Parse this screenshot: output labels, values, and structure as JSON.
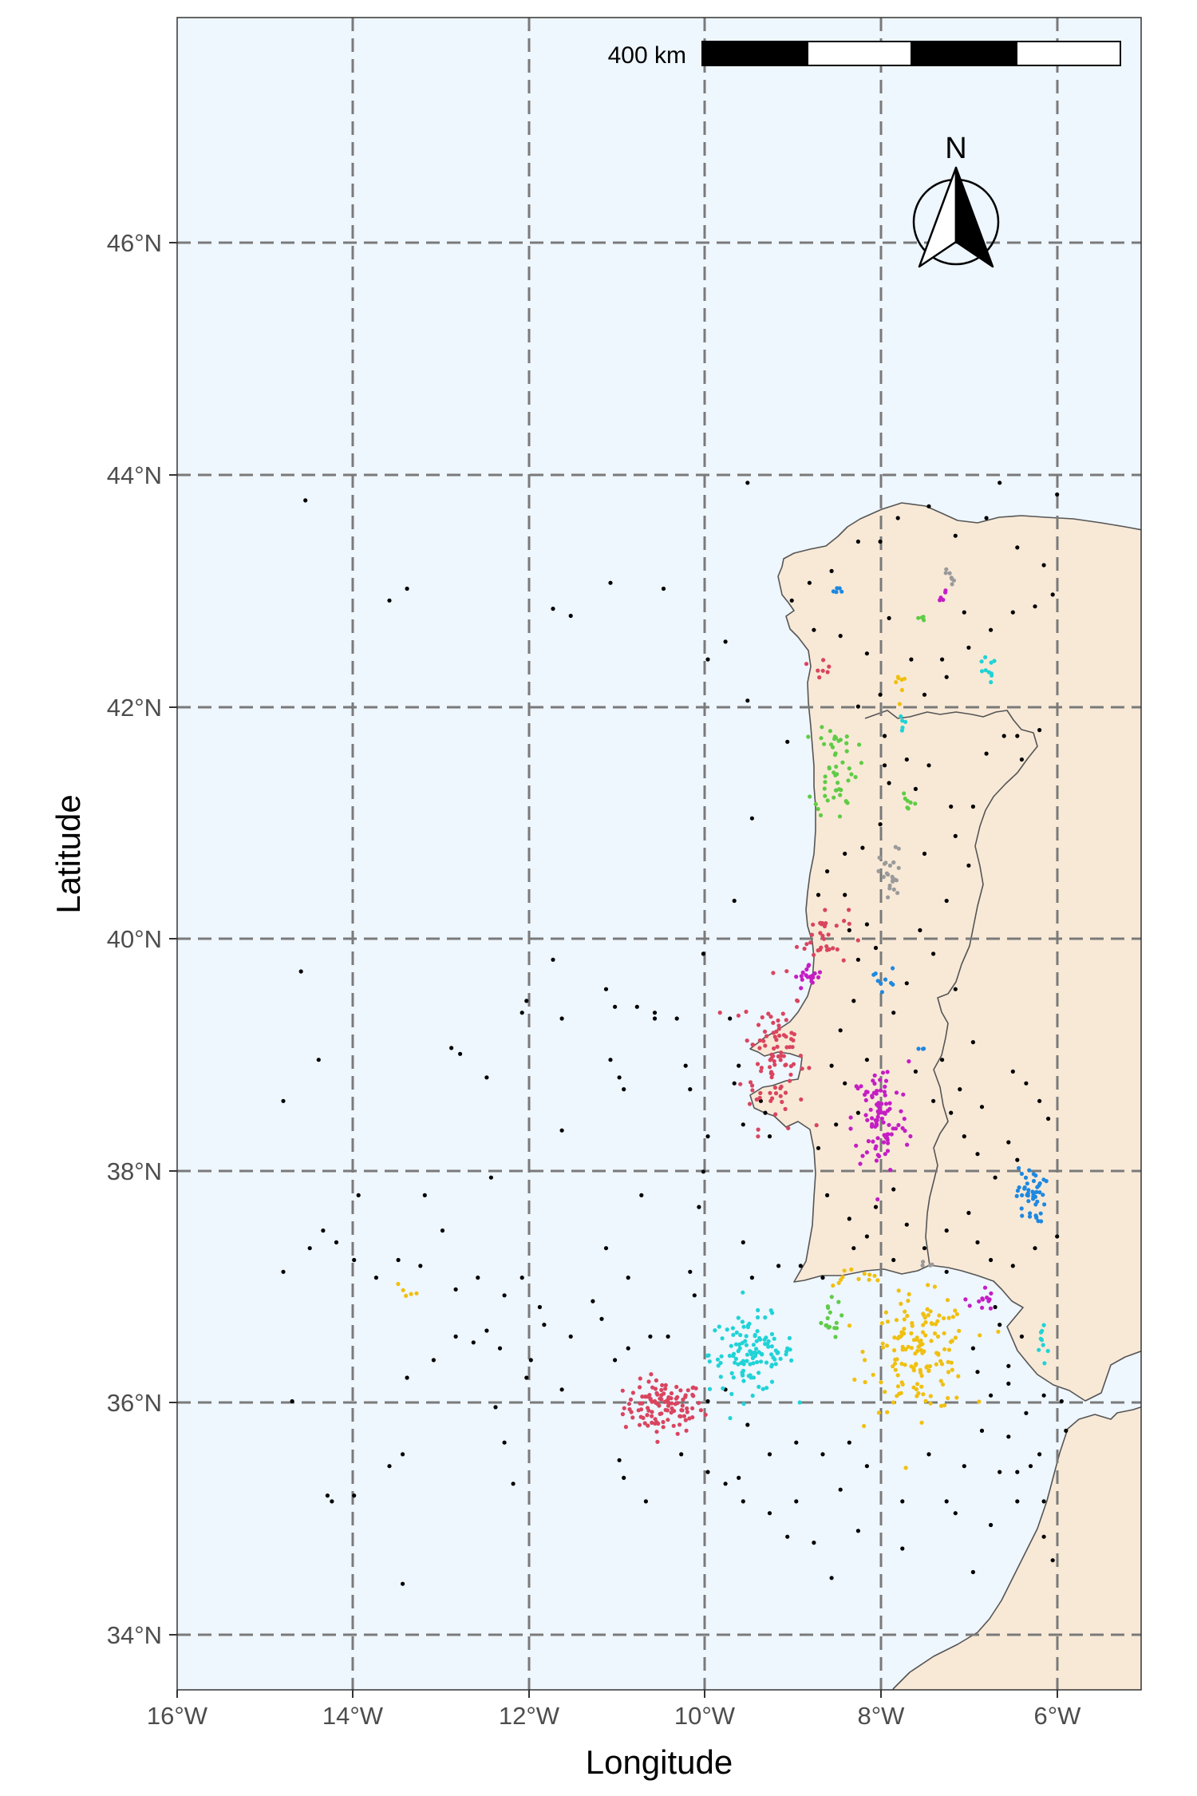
{
  "chart_data": {
    "type": "scatter",
    "xlabel": "Longitude",
    "ylabel": "Latitude",
    "xlim": [
      -16,
      -5.1
    ],
    "ylim": [
      33.6,
      47.8
    ],
    "x_ticks": [
      -16,
      -14,
      -12,
      -10,
      -8,
      -6
    ],
    "x_tick_labels": [
      "16°W",
      "14°W",
      "12°W",
      "10°W",
      "8°W",
      "6°W"
    ],
    "y_ticks": [
      34,
      36,
      38,
      40,
      42,
      44,
      46
    ],
    "y_tick_labels": [
      "34°N",
      "36°N",
      "38°N",
      "40°N",
      "42°N",
      "44°N",
      "46°N"
    ],
    "grid": true,
    "scale_bar": {
      "label": "400 km",
      "segments": 4,
      "position": "top-right"
    },
    "north_arrow": {
      "label": "N",
      "position": "top-right"
    },
    "colors": {
      "ocean": "#eef6fe",
      "land": "#f8e9d7",
      "border": "#555555",
      "unclustered": "#000000",
      "red": "#d9455f",
      "cyan": "#20d3d6",
      "yellow": "#f0c010",
      "magenta": "#c41ec4",
      "green": "#5fcc46",
      "blue": "#1e88e0",
      "gray": "#9a9a9a"
    },
    "series": [
      {
        "color_key": "red",
        "clusters": [
          {
            "lon": -10.5,
            "lat": 36.0,
            "n": 115,
            "sx": 0.28,
            "sy": 0.14
          },
          {
            "lon": -9.25,
            "lat": 39.0,
            "n": 95,
            "sx": 0.22,
            "sy": 0.38
          },
          {
            "lon": -8.7,
            "lat": 40.0,
            "n": 32,
            "sx": 0.18,
            "sy": 0.16
          },
          {
            "lon": -8.7,
            "lat": 42.3,
            "n": 7,
            "sx": 0.08,
            "sy": 0.06
          }
        ]
      },
      {
        "color_key": "cyan",
        "clusters": [
          {
            "lon": -9.5,
            "lat": 36.45,
            "n": 120,
            "sx": 0.3,
            "sy": 0.2
          },
          {
            "lon": -6.2,
            "lat": 36.55,
            "n": 9,
            "sx": 0.06,
            "sy": 0.15
          },
          {
            "lon": -6.85,
            "lat": 42.25,
            "n": 10,
            "sx": 0.07,
            "sy": 0.07
          },
          {
            "lon": -7.8,
            "lat": 41.8,
            "n": 5,
            "sx": 0.05,
            "sy": 0.08
          }
        ]
      },
      {
        "color_key": "yellow",
        "clusters": [
          {
            "lon": -7.6,
            "lat": 36.45,
            "n": 150,
            "sx": 0.35,
            "sy": 0.3
          },
          {
            "lon": -8.35,
            "lat": 37.1,
            "n": 12,
            "sx": 0.25,
            "sy": 0.05
          },
          {
            "lon": -13.4,
            "lat": 37.0,
            "n": 5,
            "sx": 0.08,
            "sy": 0.04
          },
          {
            "lon": -7.85,
            "lat": 42.15,
            "n": 7,
            "sx": 0.04,
            "sy": 0.1
          }
        ]
      },
      {
        "color_key": "magenta",
        "clusters": [
          {
            "lon": -8.05,
            "lat": 38.45,
            "n": 95,
            "sx": 0.2,
            "sy": 0.3
          },
          {
            "lon": -8.85,
            "lat": 39.65,
            "n": 20,
            "sx": 0.1,
            "sy": 0.07
          },
          {
            "lon": -6.9,
            "lat": 36.9,
            "n": 12,
            "sx": 0.08,
            "sy": 0.08
          },
          {
            "lon": -7.35,
            "lat": 42.9,
            "n": 5,
            "sx": 0.05,
            "sy": 0.05
          }
        ]
      },
      {
        "color_key": "green",
        "clusters": [
          {
            "lon": -8.55,
            "lat": 41.45,
            "n": 50,
            "sx": 0.15,
            "sy": 0.28
          },
          {
            "lon": -8.65,
            "lat": 36.75,
            "n": 16,
            "sx": 0.1,
            "sy": 0.1
          },
          {
            "lon": -7.75,
            "lat": 41.1,
            "n": 7,
            "sx": 0.05,
            "sy": 0.08
          },
          {
            "lon": -7.6,
            "lat": 42.7,
            "n": 4,
            "sx": 0.03,
            "sy": 0.03
          }
        ]
      },
      {
        "color_key": "blue",
        "clusters": [
          {
            "lon": -6.35,
            "lat": 37.8,
            "n": 45,
            "sx": 0.1,
            "sy": 0.15
          },
          {
            "lon": -8.0,
            "lat": 39.65,
            "n": 9,
            "sx": 0.08,
            "sy": 0.07
          },
          {
            "lon": -8.55,
            "lat": 42.93,
            "n": 5,
            "sx": 0.06,
            "sy": 0.03
          },
          {
            "lon": -7.6,
            "lat": 39.05,
            "n": 3,
            "sx": 0.05,
            "sy": 0.03
          }
        ]
      },
      {
        "color_key": "gray",
        "clusters": [
          {
            "lon": -7.93,
            "lat": 40.5,
            "n": 24,
            "sx": 0.08,
            "sy": 0.15
          },
          {
            "lon": -7.25,
            "lat": 43.05,
            "n": 7,
            "sx": 0.07,
            "sy": 0.05
          },
          {
            "lon": -7.5,
            "lat": 37.2,
            "n": 4,
            "sx": 0.04,
            "sy": 0.03
          }
        ]
      }
    ],
    "unclustered_points": [
      [
        -14.55,
        43.7
      ],
      [
        -13.6,
        42.85
      ],
      [
        -13.4,
        42.95
      ],
      [
        -11.1,
        43.0
      ],
      [
        -10.5,
        42.95
      ],
      [
        -9.55,
        43.85
      ],
      [
        -11.75,
        42.78
      ],
      [
        -11.55,
        42.72
      ],
      [
        -10.0,
        42.35
      ],
      [
        -9.8,
        42.5
      ],
      [
        -9.55,
        42.0
      ],
      [
        -9.1,
        41.65
      ],
      [
        -9.5,
        41.0
      ],
      [
        -9.7,
        40.3
      ],
      [
        -14.6,
        39.7
      ],
      [
        -14.4,
        38.95
      ],
      [
        -14.8,
        38.6
      ],
      [
        -12.5,
        38.8
      ],
      [
        -12.9,
        39.05
      ],
      [
        -12.8,
        39.0
      ],
      [
        -11.15,
        39.55
      ],
      [
        -11.05,
        39.4
      ],
      [
        -10.8,
        39.4
      ],
      [
        -10.6,
        39.35
      ],
      [
        -10.6,
        39.3
      ],
      [
        -10.35,
        39.3
      ],
      [
        -10.25,
        38.9
      ],
      [
        -10.2,
        38.7
      ],
      [
        -11.1,
        38.95
      ],
      [
        -11.0,
        38.8
      ],
      [
        -10.95,
        38.7
      ],
      [
        -11.65,
        39.3
      ],
      [
        -11.65,
        38.35
      ],
      [
        -11.75,
        39.8
      ],
      [
        -12.05,
        39.45
      ],
      [
        -12.1,
        39.35
      ],
      [
        -10.05,
        39.85
      ],
      [
        -9.75,
        39.3
      ],
      [
        -9.4,
        38.6
      ],
      [
        -9.6,
        38.4
      ],
      [
        -10.0,
        38.3
      ],
      [
        -10.05,
        38.0
      ],
      [
        -10.1,
        37.7
      ],
      [
        -9.6,
        37.4
      ],
      [
        -9.2,
        37.2
      ],
      [
        -9.5,
        37.1
      ],
      [
        -10.75,
        37.8
      ],
      [
        -11.15,
        37.35
      ],
      [
        -10.9,
        37.1
      ],
      [
        -10.2,
        37.15
      ],
      [
        -10.15,
        36.95
      ],
      [
        -10.45,
        36.6
      ],
      [
        -10.65,
        36.6
      ],
      [
        -10.9,
        36.5
      ],
      [
        -11.05,
        36.4
      ],
      [
        -11.2,
        36.75
      ],
      [
        -11.3,
        36.9
      ],
      [
        -11.55,
        36.6
      ],
      [
        -11.85,
        36.7
      ],
      [
        -12.0,
        36.4
      ],
      [
        -12.35,
        36.5
      ],
      [
        -12.5,
        36.65
      ],
      [
        -12.65,
        36.55
      ],
      [
        -12.85,
        36.6
      ],
      [
        -13.1,
        36.4
      ],
      [
        -13.4,
        36.25
      ],
      [
        -12.4,
        36.0
      ],
      [
        -12.3,
        35.7
      ],
      [
        -12.2,
        35.35
      ],
      [
        -12.05,
        36.25
      ],
      [
        -11.65,
        36.15
      ],
      [
        -11.9,
        36.85
      ],
      [
        -12.1,
        37.1
      ],
      [
        -12.3,
        36.95
      ],
      [
        -12.6,
        37.1
      ],
      [
        -12.85,
        37.0
      ],
      [
        -13.0,
        37.5
      ],
      [
        -13.25,
        37.2
      ],
      [
        -13.5,
        37.25
      ],
      [
        -13.75,
        37.1
      ],
      [
        -14.0,
        37.25
      ],
      [
        -14.2,
        37.4
      ],
      [
        -14.35,
        37.5
      ],
      [
        -14.5,
        37.35
      ],
      [
        -14.8,
        37.15
      ],
      [
        -13.95,
        37.8
      ],
      [
        -13.2,
        37.8
      ],
      [
        -12.45,
        37.95
      ],
      [
        -13.6,
        35.5
      ],
      [
        -13.45,
        35.6
      ],
      [
        -14.0,
        35.25
      ],
      [
        -14.3,
        35.25
      ],
      [
        -14.25,
        35.2
      ],
      [
        -13.45,
        34.5
      ],
      [
        -14.7,
        36.05
      ],
      [
        -11.0,
        35.55
      ],
      [
        -10.95,
        35.4
      ],
      [
        -10.7,
        35.2
      ],
      [
        -10.3,
        35.6
      ],
      [
        -10.0,
        35.45
      ],
      [
        -9.8,
        35.35
      ],
      [
        -9.6,
        35.2
      ],
      [
        -9.3,
        35.1
      ],
      [
        -9.1,
        34.9
      ],
      [
        -8.8,
        34.85
      ],
      [
        -8.6,
        34.55
      ],
      [
        -8.3,
        34.95
      ],
      [
        -7.8,
        34.8
      ],
      [
        -7.2,
        35.1
      ],
      [
        -7.0,
        34.6
      ],
      [
        -6.8,
        35.0
      ],
      [
        -6.5,
        35.2
      ],
      [
        -6.2,
        35.2
      ],
      [
        -6.1,
        34.7
      ],
      [
        -6.2,
        34.9
      ],
      [
        -6.35,
        35.5
      ],
      [
        -6.6,
        35.75
      ],
      [
        -6.9,
        35.8
      ],
      [
        -7.1,
        35.5
      ],
      [
        -7.3,
        35.2
      ],
      [
        -7.5,
        35.6
      ],
      [
        -7.8,
        35.2
      ],
      [
        -8.2,
        35.5
      ],
      [
        -8.4,
        35.7
      ],
      [
        -8.7,
        35.6
      ],
      [
        -9.0,
        35.7
      ],
      [
        -9.3,
        35.6
      ],
      [
        -9.55,
        35.85
      ],
      [
        -9.8,
        36.15
      ],
      [
        -10.0,
        36.05
      ],
      [
        -9.65,
        35.4
      ],
      [
        -9.0,
        35.2
      ],
      [
        -8.5,
        35.3
      ],
      [
        -6.8,
        36.1
      ],
      [
        -6.6,
        36.2
      ],
      [
        -6.4,
        35.95
      ],
      [
        -6.2,
        36.1
      ],
      [
        -6.0,
        36.05
      ],
      [
        -5.95,
        35.8
      ],
      [
        -6.25,
        35.6
      ],
      [
        -6.5,
        35.45
      ],
      [
        -6.7,
        35.45
      ],
      [
        -6.6,
        36.35
      ],
      [
        -6.45,
        36.6
      ],
      [
        -6.7,
        36.7
      ],
      [
        -6.95,
        36.3
      ],
      [
        -6.8,
        37.25
      ],
      [
        -6.55,
        37.2
      ],
      [
        -6.3,
        37.35
      ],
      [
        -6.05,
        37.45
      ],
      [
        -6.15,
        38.45
      ],
      [
        -6.25,
        38.6
      ],
      [
        -6.4,
        38.75
      ],
      [
        -6.55,
        38.85
      ],
      [
        -6.5,
        38.1
      ],
      [
        -6.75,
        37.95
      ],
      [
        -6.95,
        38.15
      ],
      [
        -7.1,
        38.3
      ],
      [
        -7.25,
        38.5
      ],
      [
        -7.45,
        38.6
      ],
      [
        -7.65,
        38.85
      ],
      [
        -7.35,
        38.95
      ],
      [
        -7.15,
        38.7
      ],
      [
        -6.9,
        38.55
      ],
      [
        -7.0,
        39.1
      ],
      [
        -7.2,
        39.55
      ],
      [
        -7.45,
        39.85
      ],
      [
        -7.6,
        40.05
      ],
      [
        -7.3,
        40.3
      ],
      [
        -7.05,
        40.6
      ],
      [
        -7.2,
        40.85
      ],
      [
        -7.25,
        41.1
      ],
      [
        -7.0,
        41.1
      ],
      [
        -6.85,
        41.55
      ],
      [
        -6.65,
        41.7
      ],
      [
        -6.5,
        41.7
      ],
      [
        -6.25,
        41.75
      ],
      [
        -6.45,
        41.5
      ],
      [
        -7.5,
        41.45
      ],
      [
        -7.65,
        41.25
      ],
      [
        -7.95,
        41.3
      ],
      [
        -8.05,
        40.95
      ],
      [
        -8.25,
        40.75
      ],
      [
        -8.45,
        40.7
      ],
      [
        -8.65,
        40.55
      ],
      [
        -8.75,
        40.35
      ],
      [
        -8.45,
        40.35
      ],
      [
        -8.2,
        40.1
      ],
      [
        -8.1,
        39.9
      ],
      [
        -8.35,
        39.45
      ],
      [
        -8.5,
        39.2
      ],
      [
        -8.6,
        38.9
      ],
      [
        -8.45,
        38.75
      ],
      [
        -8.3,
        38.5
      ],
      [
        -8.55,
        38.4
      ],
      [
        -8.75,
        38.2
      ],
      [
        -8.65,
        37.8
      ],
      [
        -8.4,
        37.6
      ],
      [
        -8.2,
        37.45
      ],
      [
        -8.1,
        37.7
      ],
      [
        -7.9,
        37.85
      ],
      [
        -7.75,
        37.55
      ],
      [
        -7.55,
        37.35
      ],
      [
        -7.3,
        37.5
      ],
      [
        -7.05,
        37.65
      ],
      [
        -6.95,
        37.4
      ],
      [
        -7.3,
        37.15
      ],
      [
        -7.9,
        37.25
      ],
      [
        -8.35,
        37.35
      ],
      [
        -8.7,
        37.1
      ],
      [
        -8.95,
        37.2
      ],
      [
        -8.2,
        38.95
      ],
      [
        -7.9,
        39.35
      ],
      [
        -7.75,
        39.6
      ],
      [
        -8.3,
        39.8
      ],
      [
        -7.55,
        40.7
      ],
      [
        -7.75,
        41.5
      ],
      [
        -8.0,
        41.7
      ],
      [
        -8.3,
        41.95
      ],
      [
        -8.05,
        42.05
      ],
      [
        -7.55,
        42.05
      ],
      [
        -7.3,
        42.2
      ],
      [
        -7.05,
        42.45
      ],
      [
        -6.8,
        42.6
      ],
      [
        -6.55,
        42.75
      ],
      [
        -6.3,
        42.8
      ],
      [
        -6.1,
        42.9
      ],
      [
        -6.2,
        43.15
      ],
      [
        -6.5,
        43.3
      ],
      [
        -6.85,
        43.55
      ],
      [
        -7.2,
        43.4
      ],
      [
        -7.5,
        43.65
      ],
      [
        -7.85,
        43.55
      ],
      [
        -8.05,
        43.35
      ],
      [
        -8.3,
        43.35
      ],
      [
        -8.6,
        43.1
      ],
      [
        -8.85,
        43.0
      ],
      [
        -9.05,
        42.85
      ],
      [
        -8.8,
        42.6
      ],
      [
        -8.5,
        42.55
      ],
      [
        -8.2,
        42.4
      ],
      [
        -7.95,
        42.7
      ],
      [
        -7.7,
        42.35
      ],
      [
        -7.35,
        42.35
      ],
      [
        -7.1,
        42.75
      ],
      [
        -6.7,
        43.85
      ],
      [
        -6.05,
        43.75
      ],
      [
        -8.0,
        41.45
      ],
      [
        -6.6,
        38.25
      ],
      [
        -6.75,
        36.85
      ],
      [
        -7.0,
        36.5
      ],
      [
        -8.4,
        40.05
      ],
      [
        -9.3,
        38.3
      ],
      [
        -9.65,
        38.9
      ],
      [
        -9.7,
        38.75
      ],
      [
        -9.35,
        38.5
      ]
    ]
  }
}
